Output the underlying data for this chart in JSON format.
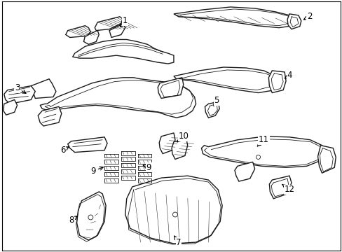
{
  "background_color": "#ffffff",
  "border_color": "#000000",
  "line_color": "#1a1a1a",
  "fig_width": 4.89,
  "fig_height": 3.6,
  "dpi": 100,
  "label_fontsize": 8.5,
  "lw_main": 1.0,
  "lw_inner": 0.6,
  "lw_hatch": 0.35
}
